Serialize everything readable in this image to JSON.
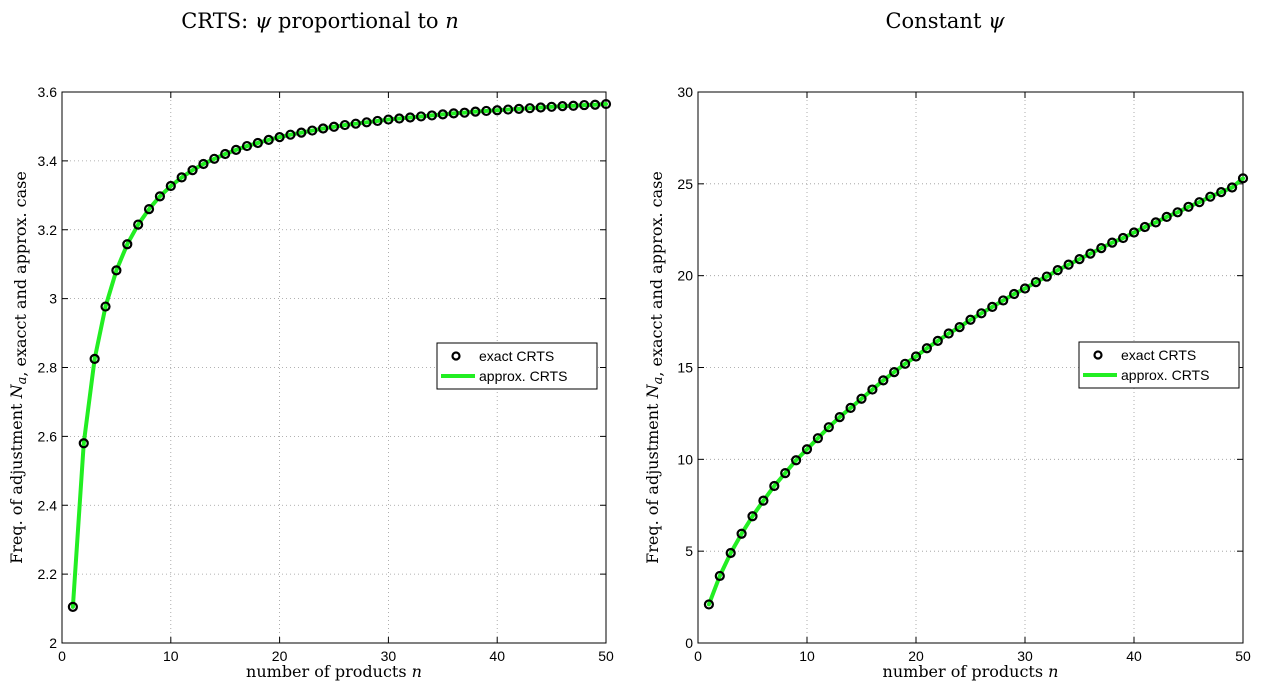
{
  "chart_data": [
    {
      "type": "line",
      "title": "CRTS: ψ proportional to n",
      "xlabel": "number of products n",
      "ylabel": "Freq. of adjustment N_a, exacct and approx. case",
      "xlim": [
        0,
        50
      ],
      "ylim": [
        2,
        3.6
      ],
      "xticks": [
        0,
        10,
        20,
        30,
        40,
        50
      ],
      "yticks": [
        2,
        2.2,
        2.4,
        2.6,
        2.8,
        3,
        3.2,
        3.4,
        3.6
      ],
      "ytick_labels": [
        "2",
        "2.2",
        "2.4",
        "2.6",
        "2.8",
        "3",
        "3.2",
        "3.4",
        "3.6"
      ],
      "grid": true,
      "legend_position": "right",
      "x": [
        1,
        2,
        3,
        4,
        5,
        6,
        7,
        8,
        9,
        10,
        11,
        12,
        13,
        14,
        15,
        16,
        17,
        18,
        19,
        20,
        21,
        22,
        23,
        24,
        25,
        26,
        27,
        28,
        29,
        30,
        31,
        32,
        33,
        34,
        35,
        36,
        37,
        38,
        39,
        40,
        41,
        42,
        43,
        44,
        45,
        46,
        47,
        48,
        49,
        50
      ],
      "series": [
        {
          "name": "exact CRTS",
          "marker": "circle",
          "color": "#000000",
          "values": [
            2.105,
            2.58,
            2.825,
            2.977,
            3.082,
            3.158,
            3.215,
            3.26,
            3.297,
            3.327,
            3.352,
            3.373,
            3.391,
            3.406,
            3.42,
            3.432,
            3.443,
            3.452,
            3.461,
            3.469,
            3.476,
            3.482,
            3.488,
            3.494,
            3.499,
            3.504,
            3.508,
            3.512,
            3.516,
            3.52,
            3.523,
            3.526,
            3.529,
            3.532,
            3.535,
            3.538,
            3.54,
            3.543,
            3.545,
            3.547,
            3.549,
            3.551,
            3.553,
            3.555,
            3.557,
            3.559,
            3.56,
            3.562,
            3.563,
            3.565
          ]
        },
        {
          "name": "approx. CRTS",
          "marker": "line",
          "color": "#22ee22",
          "values": [
            2.105,
            2.58,
            2.825,
            2.977,
            3.082,
            3.158,
            3.215,
            3.26,
            3.297,
            3.327,
            3.352,
            3.373,
            3.391,
            3.406,
            3.42,
            3.432,
            3.443,
            3.452,
            3.461,
            3.469,
            3.476,
            3.482,
            3.488,
            3.494,
            3.499,
            3.504,
            3.508,
            3.512,
            3.516,
            3.52,
            3.523,
            3.526,
            3.529,
            3.532,
            3.535,
            3.538,
            3.54,
            3.543,
            3.545,
            3.547,
            3.549,
            3.551,
            3.553,
            3.555,
            3.557,
            3.559,
            3.56,
            3.562,
            3.563,
            3.565
          ]
        }
      ]
    },
    {
      "type": "line",
      "title": "Constant ψ",
      "xlabel": "number of products n",
      "ylabel": "Freq. of adjustment N_a, exacct and approx. case",
      "xlim": [
        0,
        50
      ],
      "ylim": [
        0,
        30
      ],
      "xticks": [
        0,
        10,
        20,
        30,
        40,
        50
      ],
      "yticks": [
        0,
        5,
        10,
        15,
        20,
        25,
        30
      ],
      "ytick_labels": [
        "0",
        "5",
        "10",
        "15",
        "20",
        "25",
        "30"
      ],
      "grid": true,
      "legend_position": "right",
      "x": [
        1,
        2,
        3,
        4,
        5,
        6,
        7,
        8,
        9,
        10,
        11,
        12,
        13,
        14,
        15,
        16,
        17,
        18,
        19,
        20,
        21,
        22,
        23,
        24,
        25,
        26,
        27,
        28,
        29,
        30,
        31,
        32,
        33,
        34,
        35,
        36,
        37,
        38,
        39,
        40,
        41,
        42,
        43,
        44,
        45,
        46,
        47,
        48,
        49,
        50
      ],
      "series": [
        {
          "name": "exact CRTS",
          "marker": "circle",
          "color": "#000000",
          "values": [
            2.1,
            3.65,
            4.9,
            5.95,
            6.9,
            7.75,
            8.55,
            9.25,
            9.95,
            10.55,
            11.15,
            11.75,
            12.3,
            12.8,
            13.3,
            13.8,
            14.3,
            14.75,
            15.2,
            15.6,
            16.05,
            16.45,
            16.85,
            17.2,
            17.6,
            17.95,
            18.3,
            18.65,
            19.0,
            19.3,
            19.65,
            19.95,
            20.3,
            20.6,
            20.9,
            21.2,
            21.5,
            21.8,
            22.05,
            22.35,
            22.65,
            22.9,
            23.2,
            23.45,
            23.75,
            24.0,
            24.3,
            24.55,
            24.8,
            25.3
          ]
        },
        {
          "name": "approx. CRTS",
          "marker": "line",
          "color": "#22ee22",
          "values": [
            2.1,
            3.65,
            4.9,
            5.95,
            6.9,
            7.75,
            8.55,
            9.25,
            9.95,
            10.55,
            11.15,
            11.75,
            12.3,
            12.8,
            13.3,
            13.8,
            14.3,
            14.75,
            15.2,
            15.6,
            16.05,
            16.45,
            16.85,
            17.2,
            17.6,
            17.95,
            18.3,
            18.65,
            19.0,
            19.3,
            19.65,
            19.95,
            20.3,
            20.6,
            20.9,
            21.2,
            21.5,
            21.8,
            22.05,
            22.35,
            22.65,
            22.9,
            23.2,
            23.45,
            23.75,
            24.0,
            24.3,
            24.55,
            24.8,
            25.3
          ]
        }
      ]
    }
  ]
}
